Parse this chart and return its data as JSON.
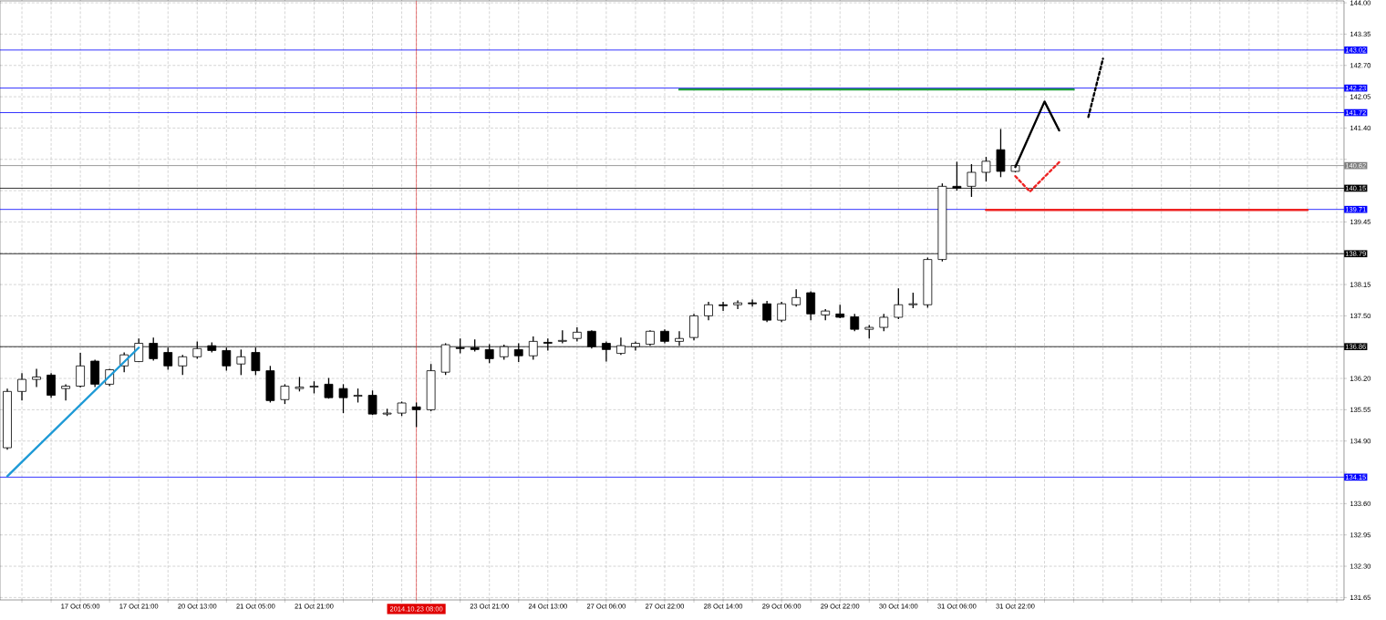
{
  "chart_data": {
    "type": "candlestick",
    "categories": [
      null,
      null,
      null,
      null,
      null,
      "17 Oct 05:00",
      null,
      null,
      null,
      "17 Oct 21:00",
      null,
      null,
      null,
      "20 Oct 13:00",
      null,
      null,
      null,
      "21 Oct 05:00",
      null,
      null,
      null,
      "21 Oct 21:00",
      null,
      null,
      null,
      null,
      null,
      null,
      "2014.10.23 08:00",
      null,
      null,
      null,
      null,
      "23 Oct 21:00",
      null,
      null,
      null,
      "24 Oct 13:00",
      null,
      null,
      null,
      "27 Oct 06:00",
      null,
      null,
      null,
      "27 Oct 22:00",
      null,
      null,
      null,
      "28 Oct 14:00",
      null,
      null,
      null,
      "29 Oct 06:00",
      null,
      null,
      null,
      "29 Oct 22:00",
      null,
      null,
      null,
      "30 Oct 14:00",
      null,
      null,
      null,
      "31 Oct 06:00",
      null,
      null,
      null,
      "31 Oct 22:00",
      null,
      null,
      null,
      null,
      null,
      null,
      null,
      null,
      null,
      null,
      null,
      null,
      null,
      null,
      null,
      null,
      null,
      null,
      null,
      null,
      null,
      null
    ],
    "ohlc": [
      [
        134.76,
        135.99,
        134.72,
        135.93
      ],
      [
        135.93,
        136.31,
        135.74,
        136.18
      ],
      [
        136.18,
        136.4,
        136.02,
        136.23
      ],
      [
        136.27,
        136.31,
        135.8,
        135.85
      ],
      [
        135.99,
        136.08,
        135.74,
        136.04
      ],
      [
        136.04,
        136.73,
        136.01,
        136.46
      ],
      [
        136.56,
        136.59,
        136.02,
        136.08
      ],
      [
        136.08,
        136.4,
        136.04,
        136.38
      ],
      [
        136.46,
        136.74,
        136.33,
        136.69
      ],
      [
        136.55,
        137.03,
        136.54,
        136.93
      ],
      [
        136.93,
        137.05,
        136.57,
        136.61
      ],
      [
        136.74,
        136.84,
        136.38,
        136.46
      ],
      [
        136.46,
        136.69,
        136.27,
        136.65
      ],
      [
        136.65,
        136.97,
        136.61,
        136.82
      ],
      [
        136.88,
        136.95,
        136.74,
        136.78
      ],
      [
        136.78,
        136.84,
        136.36,
        136.46
      ],
      [
        136.5,
        136.8,
        136.27,
        136.65
      ],
      [
        136.74,
        136.84,
        136.27,
        136.36
      ],
      [
        136.36,
        136.46,
        135.7,
        135.74
      ],
      [
        135.76,
        136.08,
        135.67,
        136.04
      ],
      [
        135.99,
        136.23,
        135.93,
        136.02
      ],
      [
        136.02,
        136.14,
        135.89,
        136.04
      ],
      [
        136.08,
        136.21,
        135.78,
        135.8
      ],
      [
        135.99,
        136.08,
        135.48,
        135.8
      ],
      [
        135.83,
        135.99,
        135.7,
        135.85
      ],
      [
        135.85,
        135.95,
        135.44,
        135.46
      ],
      [
        135.46,
        135.57,
        135.42,
        135.48
      ],
      [
        135.48,
        135.72,
        135.42,
        135.69
      ],
      [
        135.61,
        135.7,
        135.19,
        135.55
      ],
      [
        135.55,
        136.5,
        135.52,
        136.36
      ],
      [
        136.33,
        136.93,
        136.27,
        136.9
      ],
      [
        136.84,
        137.03,
        136.72,
        136.82
      ],
      [
        136.84,
        137.01,
        136.76,
        136.8
      ],
      [
        136.8,
        136.91,
        136.52,
        136.61
      ],
      [
        136.65,
        136.9,
        136.59,
        136.86
      ],
      [
        136.8,
        136.93,
        136.54,
        136.67
      ],
      [
        136.67,
        137.07,
        136.59,
        136.97
      ],
      [
        136.95,
        137.03,
        136.78,
        136.93
      ],
      [
        136.97,
        137.2,
        136.93,
        136.99
      ],
      [
        137.03,
        137.26,
        136.97,
        137.16
      ],
      [
        137.18,
        137.2,
        136.82,
        136.86
      ],
      [
        136.93,
        136.97,
        136.55,
        136.8
      ],
      [
        136.72,
        137.05,
        136.69,
        136.88
      ],
      [
        136.86,
        136.97,
        136.78,
        136.93
      ],
      [
        136.91,
        137.2,
        136.88,
        137.18
      ],
      [
        137.18,
        137.22,
        136.93,
        136.97
      ],
      [
        136.97,
        137.18,
        136.88,
        137.03
      ],
      [
        137.05,
        137.54,
        136.99,
        137.5
      ],
      [
        137.5,
        137.79,
        137.41,
        137.73
      ],
      [
        137.73,
        137.79,
        137.6,
        137.71
      ],
      [
        137.73,
        137.82,
        137.64,
        137.77
      ],
      [
        137.77,
        137.84,
        137.69,
        137.75
      ],
      [
        137.75,
        137.81,
        137.37,
        137.41
      ],
      [
        137.41,
        137.79,
        137.37,
        137.75
      ],
      [
        137.73,
        138.05,
        137.69,
        137.88
      ],
      [
        137.98,
        138.01,
        137.41,
        137.54
      ],
      [
        137.52,
        137.64,
        137.41,
        137.6
      ],
      [
        137.54,
        137.73,
        137.45,
        137.47
      ],
      [
        137.48,
        137.54,
        137.18,
        137.22
      ],
      [
        137.22,
        137.31,
        137.03,
        137.26
      ],
      [
        137.26,
        137.54,
        137.18,
        137.47
      ],
      [
        137.47,
        138.07,
        137.43,
        137.73
      ],
      [
        137.73,
        137.98,
        137.66,
        137.75
      ],
      [
        137.73,
        138.71,
        137.67,
        138.67
      ],
      [
        138.67,
        140.25,
        138.63,
        140.19
      ],
      [
        140.19,
        140.7,
        140.1,
        140.15
      ],
      [
        140.19,
        140.65,
        139.97,
        140.48
      ],
      [
        140.48,
        140.8,
        140.29,
        140.71
      ],
      [
        140.95,
        141.38,
        140.38,
        140.5
      ],
      [
        140.5,
        140.64,
        140.48,
        140.62
      ],
      null,
      null,
      null,
      null,
      null,
      null,
      null,
      null,
      null,
      null,
      null,
      null,
      null,
      null,
      null,
      null,
      null,
      null,
      null,
      null,
      null,
      null
    ],
    "ylim": [
      131.6,
      144.04
    ],
    "yticks": [
      131.65,
      {
        "value": 132.3,
        "label": "132.30"
      },
      132.95,
      {
        "value": 133.6,
        "label": "133.60"
      },
      {
        "value": 134.25,
        "label": null
      },
      {
        "value": 134.9,
        "label": "134.90"
      },
      135.55,
      {
        "value": 136.2,
        "label": "136.20"
      },
      {
        "value": 136.85,
        "label": null
      },
      {
        "value": 137.5,
        "label": "137.50"
      },
      138.15,
      {
        "value": 138.8,
        "label": null
      },
      139.45,
      {
        "value": 140.1,
        "label": null
      },
      {
        "value": 140.75,
        "label": null
      },
      {
        "value": 141.4,
        "label": "141.40"
      },
      142.05,
      {
        "value": 142.7,
        "label": "142.70"
      },
      143.35,
      {
        "value": 144,
        "label": "144.00"
      }
    ],
    "grid": true,
    "series": [
      {
        "type": "line",
        "color": "#1e9ad6",
        "values": [
          134.17,
          null,
          null,
          null,
          null,
          null,
          null,
          null,
          null,
          136.84,
          null,
          null,
          null,
          null,
          null,
          null,
          null,
          null,
          null,
          null,
          null,
          null,
          null,
          null,
          null,
          null,
          null,
          null,
          null,
          null,
          null,
          null,
          null,
          null,
          null,
          null,
          null,
          null,
          null,
          null,
          null,
          null,
          null,
          null,
          null,
          null,
          null,
          null,
          null,
          null,
          null,
          null,
          null,
          null,
          null,
          null,
          null,
          null,
          null,
          null,
          null,
          null,
          null,
          null,
          null,
          null,
          null,
          null,
          null,
          null,
          null,
          null,
          null,
          null,
          null,
          null,
          null,
          null,
          null,
          null,
          null,
          null,
          null,
          null,
          null,
          null,
          null,
          null,
          null,
          null,
          null,
          null
        ]
      },
      {
        "type": "line",
        "color": "#1f9e3a",
        "values": [
          null,
          null,
          null,
          null,
          null,
          null,
          null,
          null,
          null,
          null,
          null,
          null,
          null,
          null,
          null,
          null,
          null,
          null,
          null,
          null,
          null,
          null,
          null,
          null,
          null,
          null,
          null,
          null,
          null,
          null,
          null,
          null,
          null,
          null,
          null,
          null,
          null,
          null,
          null,
          null,
          null,
          null,
          null,
          null,
          null,
          null,
          142.2,
          null,
          null,
          null,
          null,
          null,
          null,
          null,
          null,
          null,
          null,
          null,
          null,
          null,
          null,
          null,
          null,
          null,
          null,
          null,
          null,
          null,
          null,
          null,
          null,
          null,
          null,
          142.2,
          null,
          null,
          null,
          null,
          null,
          null,
          null,
          null,
          null,
          null,
          null,
          null,
          null,
          null,
          null,
          null,
          null,
          null
        ]
      },
      {
        "type": "line",
        "color": "#ee2222",
        "values": [
          null,
          null,
          null,
          null,
          null,
          null,
          null,
          null,
          null,
          null,
          null,
          null,
          null,
          null,
          null,
          null,
          null,
          null,
          null,
          null,
          null,
          null,
          null,
          null,
          null,
          null,
          null,
          null,
          null,
          null,
          null,
          null,
          null,
          null,
          null,
          null,
          null,
          null,
          null,
          null,
          null,
          null,
          null,
          null,
          null,
          null,
          null,
          null,
          null,
          null,
          null,
          null,
          null,
          null,
          null,
          null,
          null,
          null,
          null,
          null,
          null,
          null,
          null,
          null,
          null,
          null,
          null,
          139.7,
          null,
          null,
          null,
          null,
          null,
          null,
          null,
          null,
          null,
          null,
          null,
          null,
          null,
          null,
          null,
          null,
          null,
          null,
          null,
          null,
          null,
          139.7,
          null,
          null
        ]
      },
      {
        "type": "line",
        "color": "#000000",
        "values": [
          null,
          null,
          null,
          null,
          null,
          null,
          null,
          null,
          null,
          null,
          null,
          null,
          null,
          null,
          null,
          null,
          null,
          null,
          null,
          null,
          null,
          null,
          null,
          null,
          null,
          null,
          null,
          null,
          null,
          null,
          null,
          null,
          null,
          null,
          null,
          null,
          null,
          null,
          null,
          null,
          null,
          null,
          null,
          null,
          null,
          null,
          null,
          null,
          null,
          null,
          null,
          null,
          null,
          null,
          null,
          null,
          null,
          null,
          null,
          null,
          null,
          null,
          null,
          null,
          null,
          null,
          null,
          null,
          null,
          140.59,
          null,
          141.95,
          141.35,
          null,
          null,
          null,
          null,
          null,
          null,
          null,
          null,
          null,
          null,
          null,
          null,
          null,
          null,
          null,
          null,
          null,
          null,
          null
        ]
      },
      {
        "type": "line",
        "color": "#000000",
        "line_style": "dashed",
        "values": [
          null,
          null,
          null,
          null,
          null,
          null,
          null,
          null,
          null,
          null,
          null,
          null,
          null,
          null,
          null,
          null,
          null,
          null,
          null,
          null,
          null,
          null,
          null,
          null,
          null,
          null,
          null,
          null,
          null,
          null,
          null,
          null,
          null,
          null,
          null,
          null,
          null,
          null,
          null,
          null,
          null,
          null,
          null,
          null,
          null,
          null,
          null,
          null,
          null,
          null,
          null,
          null,
          null,
          null,
          null,
          null,
          null,
          null,
          null,
          null,
          null,
          null,
          null,
          null,
          null,
          null,
          null,
          null,
          null,
          null,
          null,
          null,
          null,
          null,
          141.63,
          142.84,
          null,
          null,
          null,
          null,
          null,
          null,
          null,
          null,
          null,
          null,
          null,
          null,
          null,
          null,
          null,
          null
        ]
      },
      {
        "type": "line",
        "color": "#ee2222",
        "line_style": "dashed",
        "values": [
          null,
          null,
          null,
          null,
          null,
          null,
          null,
          null,
          null,
          null,
          null,
          null,
          null,
          null,
          null,
          null,
          null,
          null,
          null,
          null,
          null,
          null,
          null,
          null,
          null,
          null,
          null,
          null,
          null,
          null,
          null,
          null,
          null,
          null,
          null,
          null,
          null,
          null,
          null,
          null,
          null,
          null,
          null,
          null,
          null,
          null,
          null,
          null,
          null,
          null,
          null,
          null,
          null,
          null,
          null,
          null,
          null,
          null,
          null,
          null,
          null,
          null,
          null,
          null,
          null,
          null,
          null,
          null,
          null,
          140.4,
          140.08,
          null,
          140.69,
          null,
          null,
          null,
          null,
          null,
          null,
          null,
          null,
          null,
          null,
          null,
          null,
          null,
          null,
          null,
          null,
          null,
          null,
          null
        ]
      }
    ],
    "ref_lines": [
      {
        "axis": "y",
        "value": 143.02,
        "label": "143.02",
        "color": "#0000ff"
      },
      {
        "axis": "y",
        "value": 142.23,
        "label": "142.23",
        "color": "#0000ff"
      },
      {
        "axis": "y",
        "value": 141.72,
        "label": "141.72",
        "color": "#0000ff"
      },
      {
        "axis": "y",
        "value": 140.62,
        "label": "140.62",
        "color": "#808080"
      },
      {
        "axis": "y",
        "value": 140.15,
        "label": "140.15",
        "color": "#000000"
      },
      {
        "axis": "y",
        "value": 139.71,
        "label": "139.71",
        "color": "#0000ff"
      },
      {
        "axis": "y",
        "value": 138.79,
        "label": "138.79",
        "color": "#000000"
      },
      {
        "axis": "y",
        "value": 136.86,
        "label": "136.86",
        "color": "#000000"
      },
      {
        "axis": "y",
        "value": 134.15,
        "label": "134.15",
        "color": "#0000ff"
      },
      {
        "axis": "x",
        "value": "2014.10.23 08:00",
        "color": "#e00000"
      }
    ]
  }
}
